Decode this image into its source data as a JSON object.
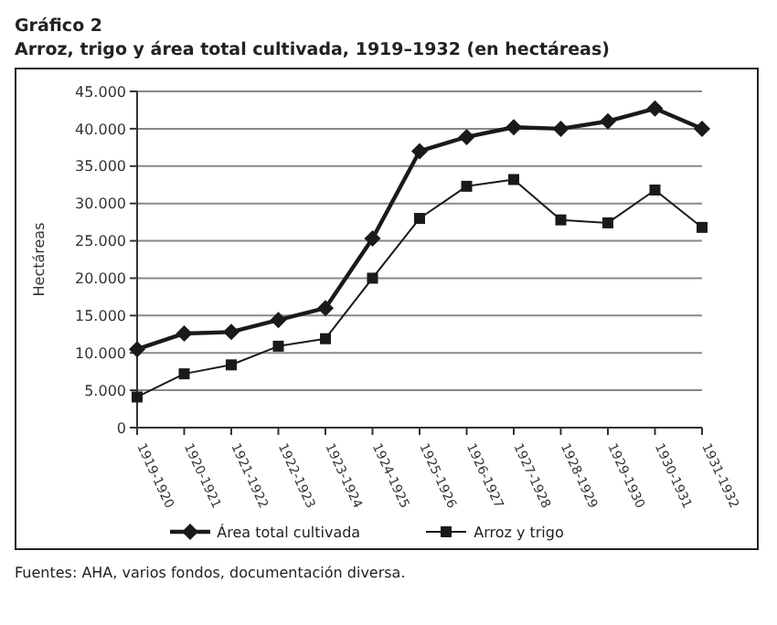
{
  "chart_data": {
    "type": "line",
    "title": "Gráfico 2",
    "subtitle": "Arroz, trigo y área total cultivada, 1919–1932 (en hectáreas)",
    "ylabel": "Hectáreas",
    "categories": [
      "1919-1920",
      "1920-1921",
      "1921-1922",
      "1922-1923",
      "1923-1924",
      "1924-1925",
      "1925-1926",
      "1926-1927",
      "1927-1928",
      "1928-1929",
      "1929-1930",
      "1930-1931",
      "1931-1932"
    ],
    "series": [
      {
        "name": "Área total cultivada",
        "color": "#1a1a1a",
        "marker": "diamond",
        "values": [
          10500,
          12600,
          12800,
          14400,
          16000,
          25300,
          37000,
          38900,
          40200,
          40000,
          41000,
          42700,
          40000
        ]
      },
      {
        "name": "Arroz y trigo",
        "color": "#1a1a1a",
        "marker": "square",
        "values": [
          4100,
          7200,
          8400,
          10900,
          11900,
          20000,
          28000,
          32300,
          33200,
          27800,
          27400,
          31800,
          26800
        ]
      }
    ],
    "ylim": [
      0,
      45000
    ],
    "yticks": [
      {
        "value": 0,
        "label": "0"
      },
      {
        "value": 5000,
        "label": "5.000"
      },
      {
        "value": 10000,
        "label": "10.000"
      },
      {
        "value": 15000,
        "label": "15.000"
      },
      {
        "value": 20000,
        "label": "20.000"
      },
      {
        "value": 25000,
        "label": "25.000"
      },
      {
        "value": 30000,
        "label": "30.000"
      },
      {
        "value": 35000,
        "label": "35.000"
      },
      {
        "value": 40000,
        "label": "40.000"
      },
      {
        "value": 45000,
        "label": "45.000"
      }
    ],
    "grid": "y",
    "legend": "bottom",
    "annotations": [
      "Fuentes: AHA, varios fondos, documentación diversa."
    ]
  }
}
